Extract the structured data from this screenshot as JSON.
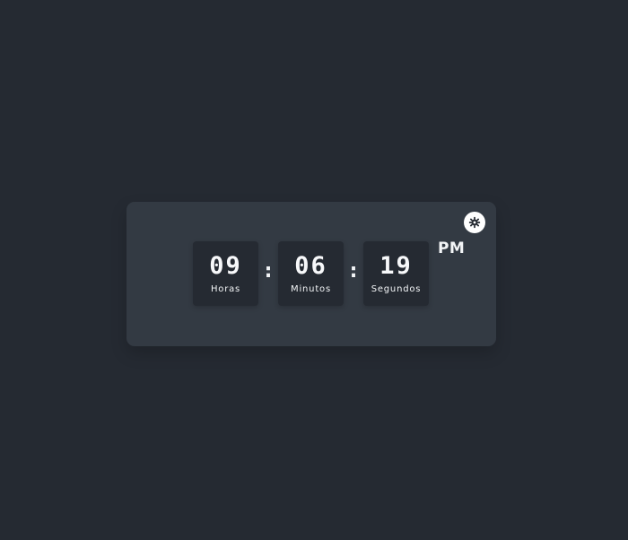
{
  "clock": {
    "hours": "09",
    "minutes": "06",
    "seconds": "19",
    "separator": ":",
    "period": "PM",
    "labels": {
      "hours": "Horas",
      "minutes": "Minutos",
      "seconds": "Segundos"
    }
  },
  "controls": {
    "theme_toggle_icon": "gear-icon"
  },
  "colors": {
    "page_background": "#252a32",
    "card_background": "#333a43",
    "digit_box_background": "#252a32",
    "text": "#f3f5f7",
    "toggle_background": "#ffffff",
    "toggle_icon": "#252a32"
  }
}
